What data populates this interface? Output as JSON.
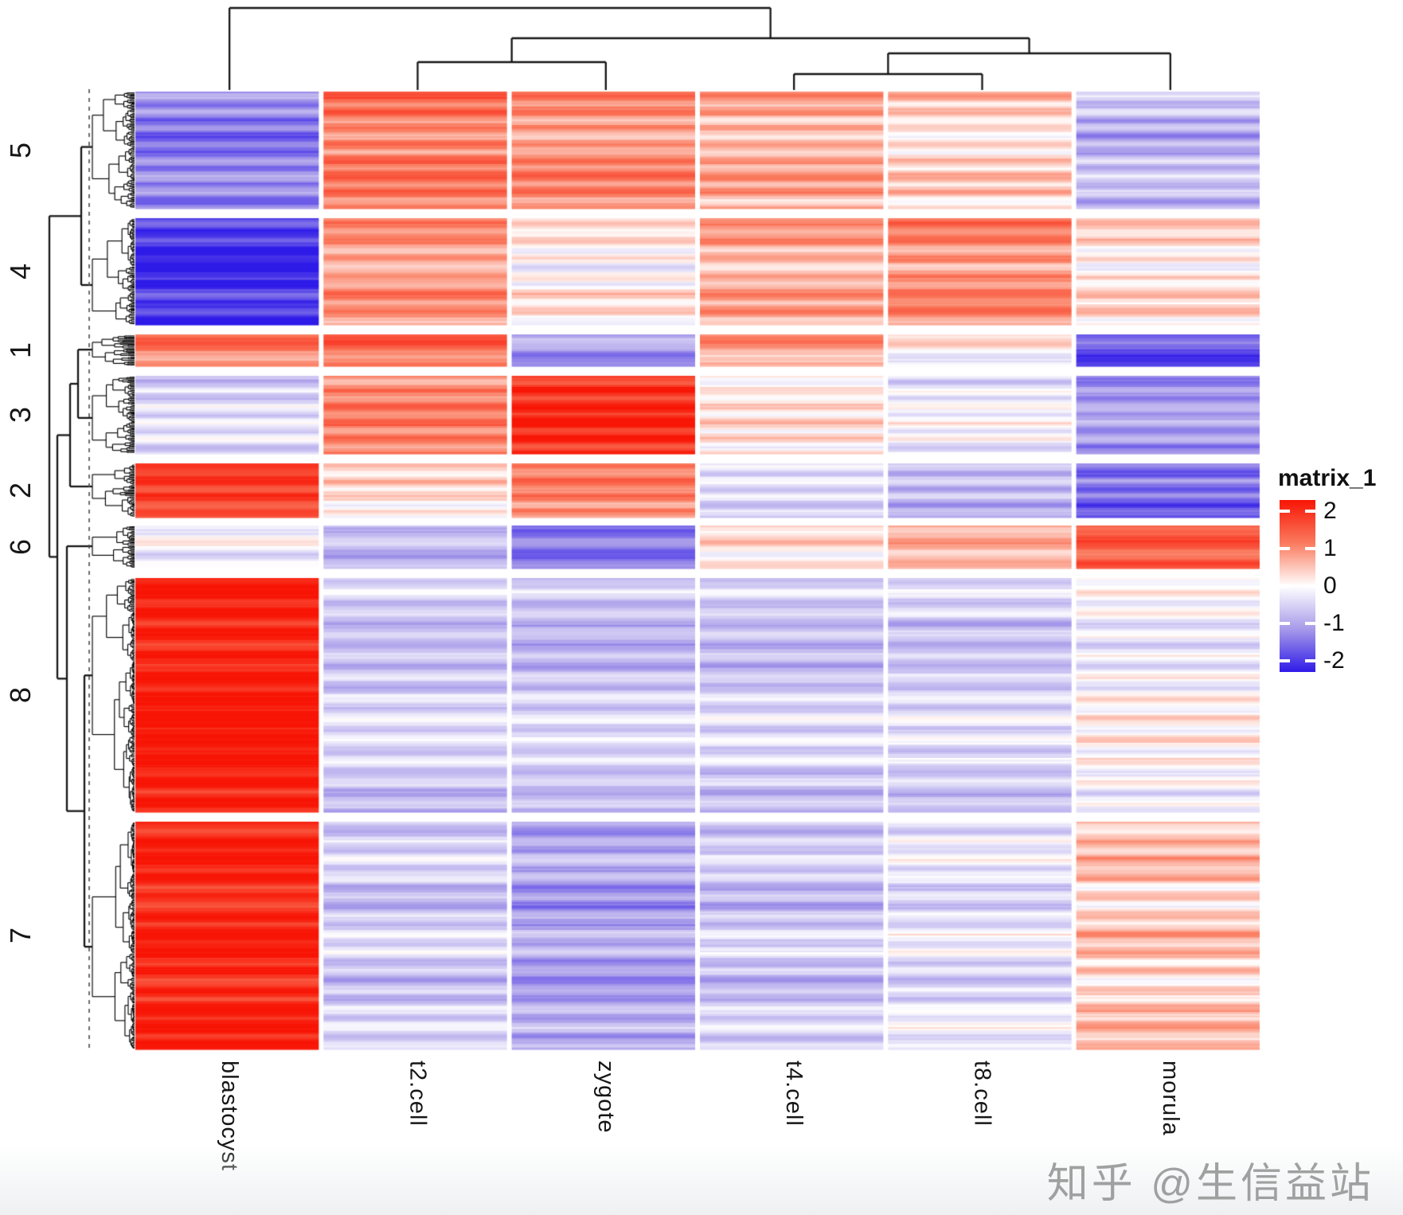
{
  "watermark": {
    "text": "知乎 @生信益站"
  },
  "legend": {
    "title": "matrix_1",
    "ticks": [
      "2",
      "1",
      "0",
      "-1",
      "-2"
    ],
    "tick_values": [
      2,
      1,
      0,
      -1,
      -2
    ]
  },
  "chart_data": {
    "type": "heatmap",
    "title": "",
    "legend_title": "matrix_1",
    "value_range": [
      -2,
      2
    ],
    "colormap_stops": [
      [
        -2,
        "#2e1ae8"
      ],
      [
        -1,
        "#a79ae9"
      ],
      [
        0,
        "#ffffff"
      ],
      [
        1,
        "#fa7a5e"
      ],
      [
        2,
        "#f81505"
      ]
    ],
    "columns": [
      "blastocyst",
      "t2.cell",
      "zygote",
      "t4.cell",
      "t8.cell",
      "morula"
    ],
    "column_dendrogram": {
      "structure": "(blastocyst,((t2.cell,zygote),((t4.cell,t8.cell),morula)))"
    },
    "row_dendrogram": {
      "cluster_order_top_to_bottom": [
        "5",
        "4",
        "1",
        "3",
        "2",
        "6",
        "8",
        "7"
      ],
      "structure": "((5,4),(((1,3),2),(6,(8,7))))",
      "cut_line": "dashed"
    },
    "row_clusters": [
      {
        "label": "5",
        "n_rows": 63,
        "mean_z_by_column": [
          -1.2,
          1.0,
          0.85,
          0.6,
          0.3,
          -0.7
        ]
      },
      {
        "label": "4",
        "n_rows": 57,
        "mean_z_by_column": [
          -1.85,
          0.75,
          0.1,
          0.6,
          0.85,
          0.2
        ]
      },
      {
        "label": "1",
        "n_rows": 17,
        "mean_z_by_column": [
          0.95,
          1.05,
          -1.0,
          0.65,
          0.0,
          -1.6
        ]
      },
      {
        "label": "3",
        "n_rows": 42,
        "mean_z_by_column": [
          -0.45,
          0.85,
          1.7,
          0.1,
          -0.25,
          -1.05
        ]
      },
      {
        "label": "2",
        "n_rows": 29,
        "mean_z_by_column": [
          1.5,
          0.15,
          0.85,
          -0.45,
          -0.75,
          -1.45
        ]
      },
      {
        "label": "6",
        "n_rows": 23,
        "mean_z_by_column": [
          -0.15,
          -0.7,
          -1.3,
          0.2,
          0.55,
          1.3
        ]
      },
      {
        "label": "8",
        "n_rows": 125,
        "mean_z_by_column": [
          2.0,
          -0.5,
          -0.55,
          -0.5,
          -0.45,
          -0.05
        ]
      },
      {
        "label": "7",
        "n_rows": 122,
        "mean_z_by_column": [
          1.85,
          -0.5,
          -0.9,
          -0.55,
          -0.3,
          0.4
        ]
      }
    ]
  }
}
